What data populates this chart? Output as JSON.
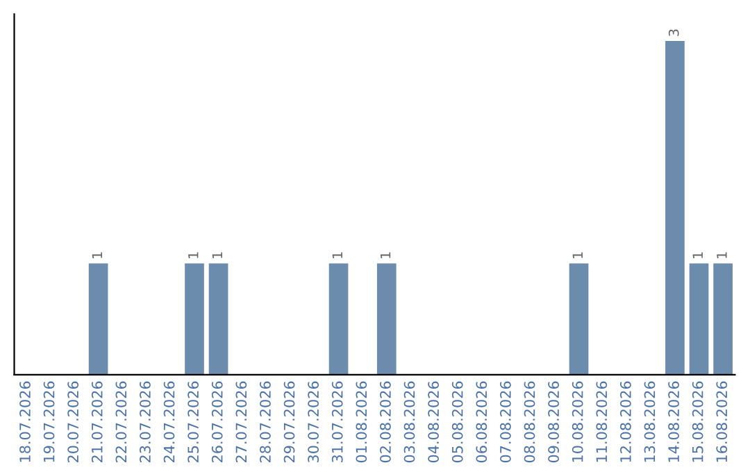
{
  "chart_data": {
    "type": "bar",
    "categories": [
      "18.07.2026",
      "19.07.2026",
      "20.07.2026",
      "21.07.2026",
      "22.07.2026",
      "23.07.2026",
      "24.07.2026",
      "25.07.2026",
      "26.07.2026",
      "27.07.2026",
      "28.07.2026",
      "29.07.2026",
      "30.07.2026",
      "31.07.2026",
      "01.08.2026",
      "02.08.2026",
      "03.08.2026",
      "04.08.2026",
      "05.08.2026",
      "06.08.2026",
      "07.08.2026",
      "08.08.2026",
      "09.08.2026",
      "10.08.2026",
      "11.08.2026",
      "12.08.2026",
      "13.08.2026",
      "14.08.2026",
      "15.08.2026",
      "16.08.2026"
    ],
    "values": [
      0,
      0,
      0,
      1,
      0,
      0,
      0,
      1,
      1,
      0,
      0,
      0,
      0,
      1,
      0,
      1,
      0,
      0,
      0,
      0,
      0,
      0,
      0,
      1,
      0,
      0,
      0,
      3,
      1,
      1
    ],
    "value_labels": [
      null,
      null,
      null,
      "1",
      null,
      null,
      null,
      "1",
      "1",
      null,
      null,
      null,
      null,
      "1",
      null,
      "1",
      null,
      null,
      null,
      null,
      null,
      null,
      null,
      "1",
      null,
      null,
      null,
      "3",
      "1",
      "1"
    ],
    "color": "#6b8cad",
    "tick_labels": "x",
    "grid": false,
    "legend": false
  }
}
